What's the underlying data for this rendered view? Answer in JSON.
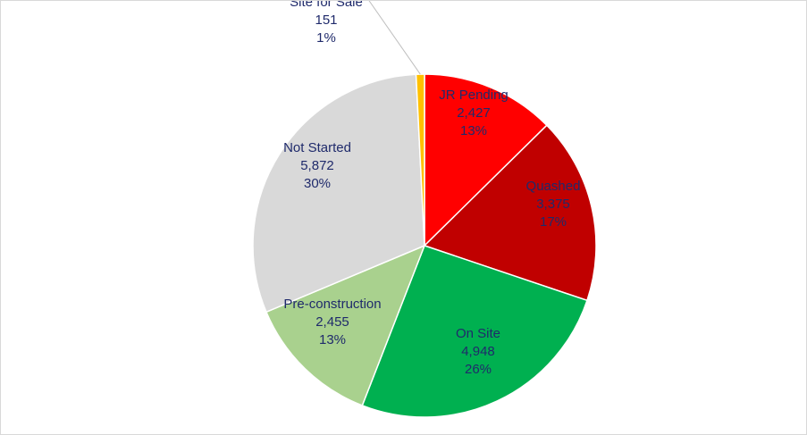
{
  "chart_data": {
    "type": "pie",
    "title": "",
    "slices": [
      {
        "label": "JR Pending",
        "value": 2427,
        "value_text": "2,427",
        "percent_text": "13%",
        "color": "#ff0000"
      },
      {
        "label": "Quashed",
        "value": 3375,
        "value_text": "3,375",
        "percent_text": "17%",
        "color": "#c00000"
      },
      {
        "label": "On Site",
        "value": 4948,
        "value_text": "4,948",
        "percent_text": "26%",
        "color": "#00b050"
      },
      {
        "label": "Pre-construction",
        "value": 2455,
        "value_text": "2,455",
        "percent_text": "13%",
        "color": "#a9d18e"
      },
      {
        "label": "Not Started",
        "value": 5872,
        "value_text": "5,872",
        "percent_text": "30%",
        "color": "#d9d9d9"
      },
      {
        "label": "Site for Sale",
        "value": 151,
        "value_text": "151",
        "percent_text": "1%",
        "color": "#ffc000"
      }
    ],
    "label_color": "#1f2a6b",
    "legend": "none",
    "data_labels": "inside, with leader line for small slice"
  }
}
